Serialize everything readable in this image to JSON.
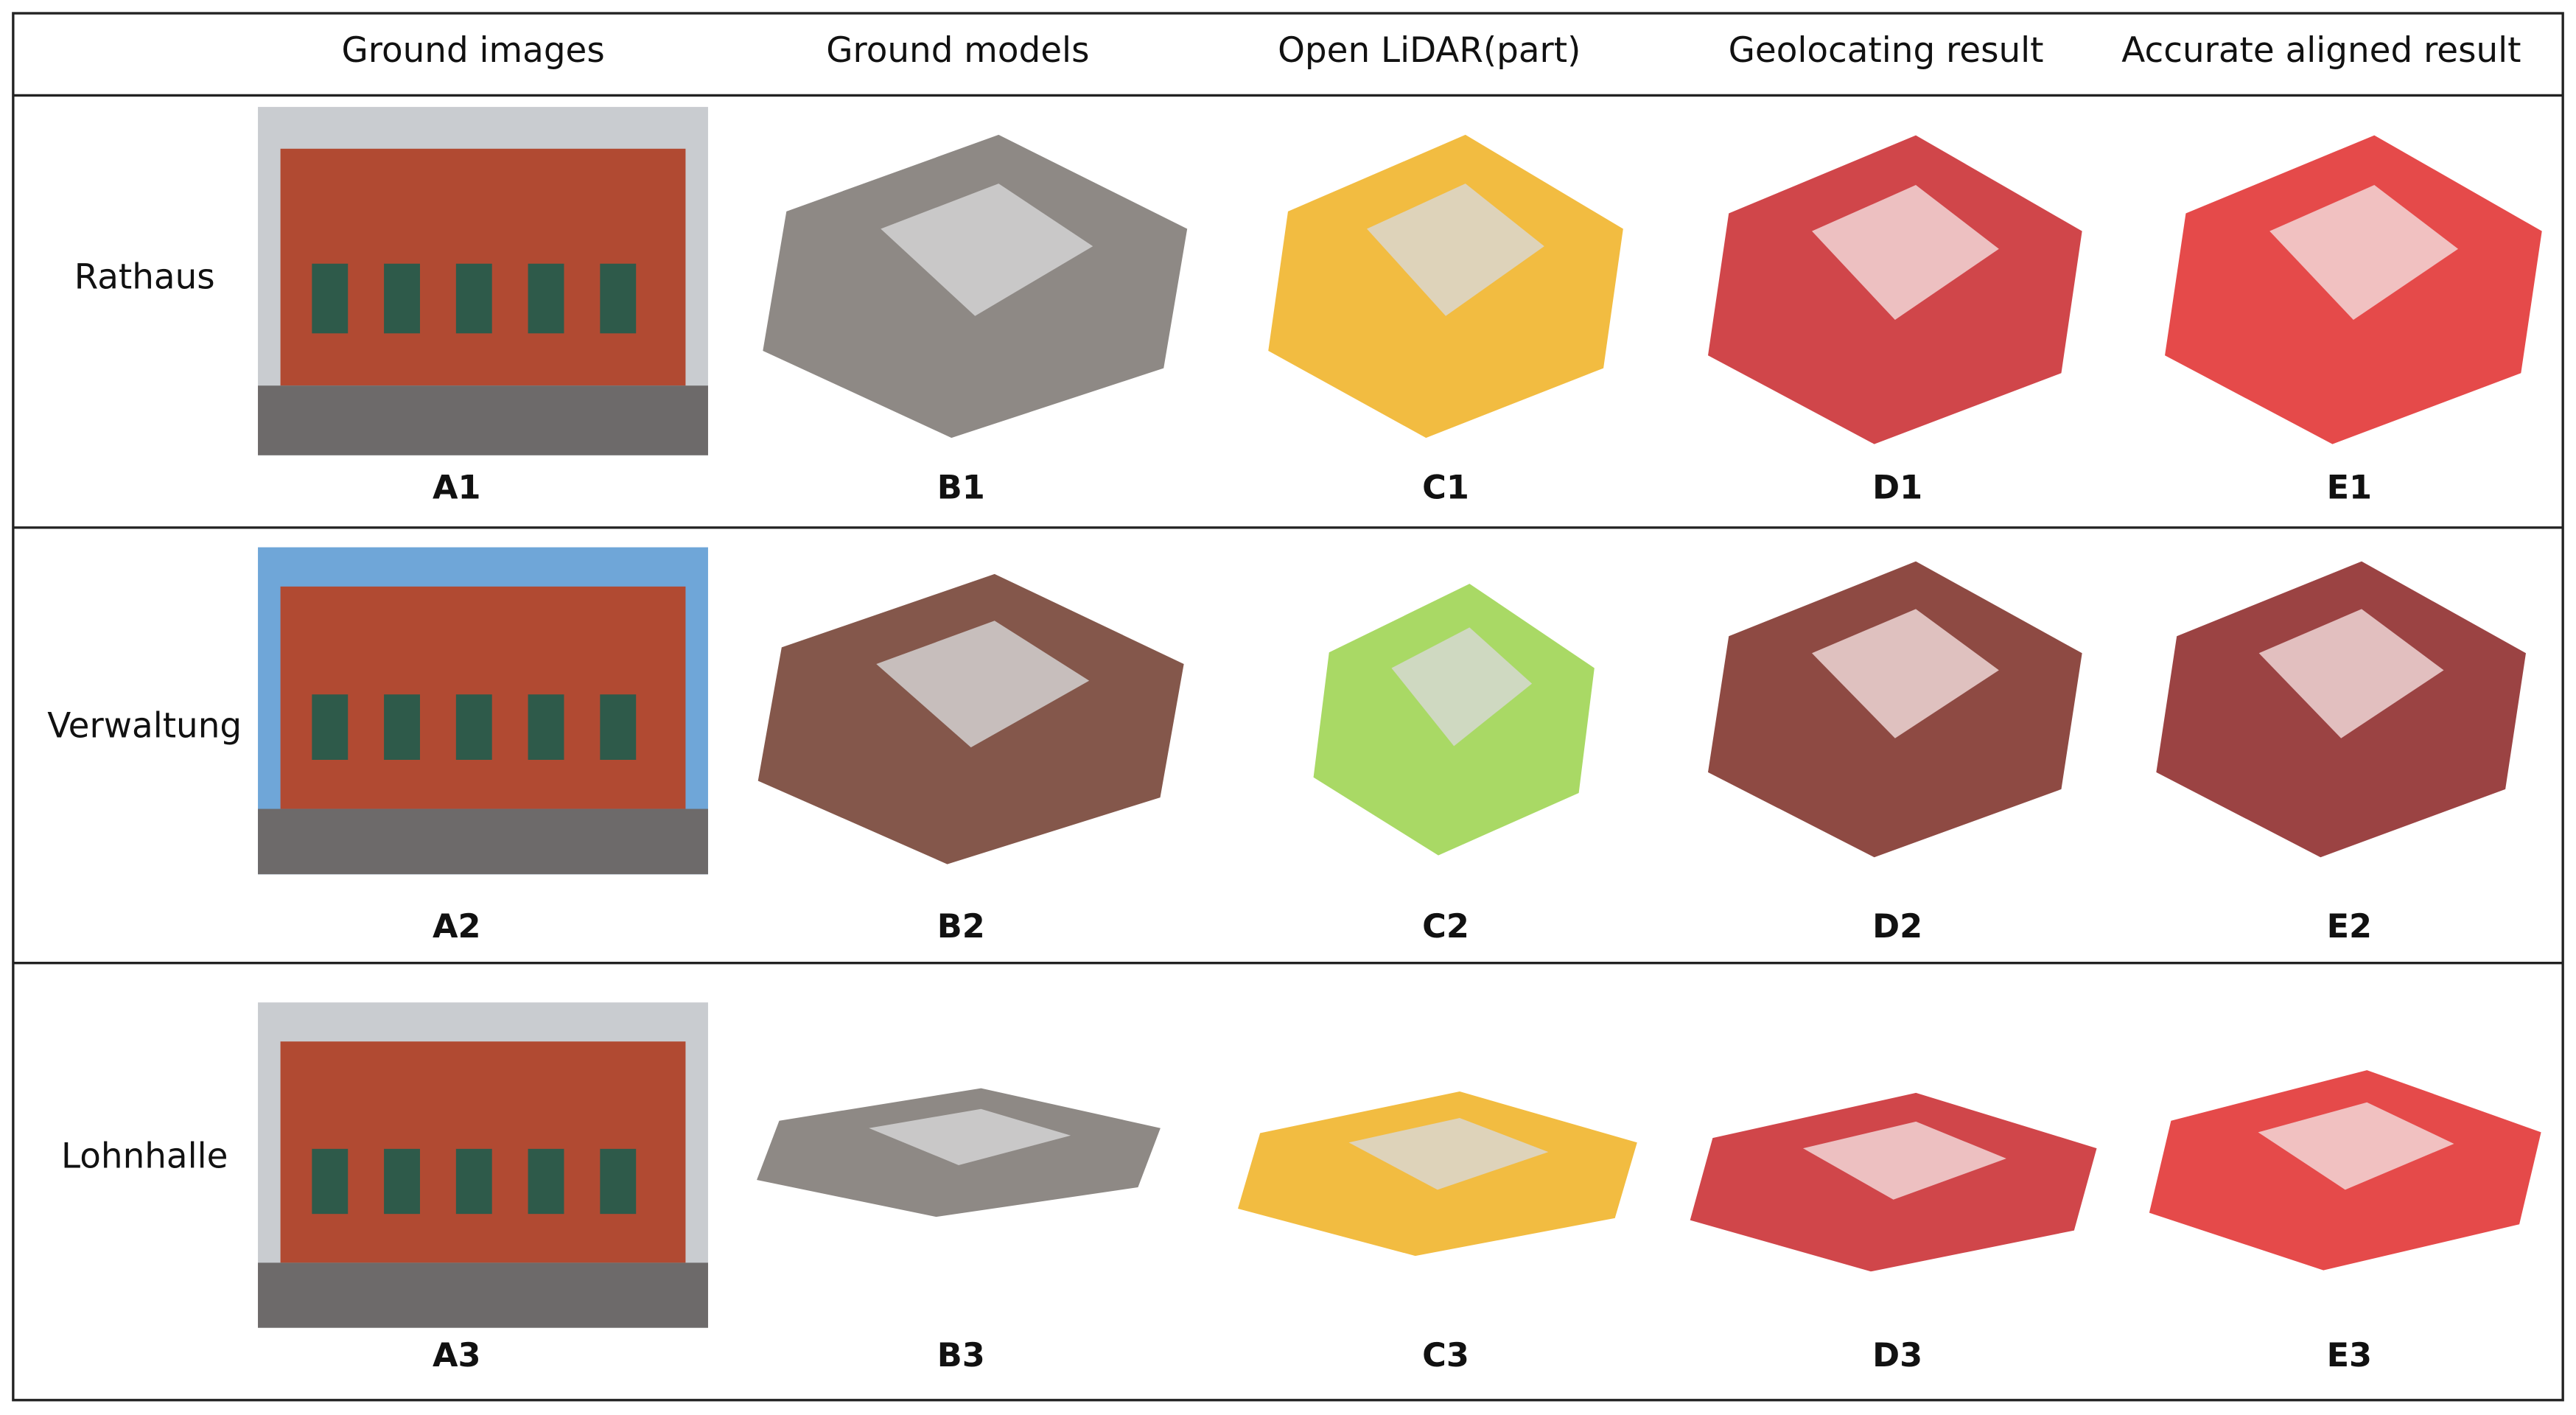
{
  "columns": [
    "Ground images",
    "Ground models",
    "Open LiDAR(part)",
    "Geolocating result",
    "Accurate aligned result"
  ],
  "rows": [
    {
      "label": "Rathaus",
      "captions": [
        "A1",
        "B1",
        "C1",
        "D1",
        "E1"
      ]
    },
    {
      "label": "Verwaltung",
      "captions": [
        "A2",
        "B2",
        "C2",
        "D2",
        "E2"
      ]
    },
    {
      "label": "Lohnhalle",
      "captions": [
        "A3",
        "B3",
        "C3",
        "D3",
        "E3"
      ]
    }
  ]
}
